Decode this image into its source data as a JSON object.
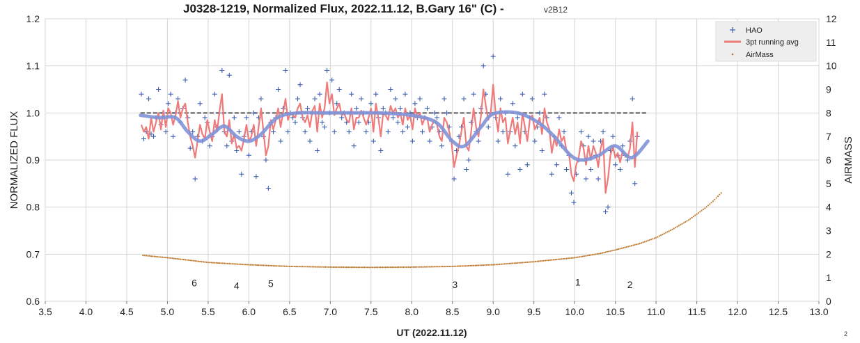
{
  "chart_data": {
    "type": "scatter",
    "title": "J0328-1219, Normalized Flux, 2022.11.12, B.Gary 16\" (C) - ",
    "version_label": "v2B12",
    "xlabel": "UT (2022.11.12)",
    "ylabel": "NORMALIZED FLUX",
    "y2label": "AIRMASS",
    "xlim": [
      3.5,
      13.0
    ],
    "ylim": [
      0.6,
      1.2
    ],
    "y2lim": [
      0,
      12
    ],
    "xticks": [
      "3.5",
      "4.0",
      "4.5",
      "5.0",
      "5.5",
      "6.0",
      "6.5",
      "7.0",
      "7.5",
      "8.0",
      "8.5",
      "9.0",
      "9.5",
      "10.0",
      "10.5",
      "11.0",
      "11.5",
      "12.0",
      "12.5",
      "13.0"
    ],
    "yticks": [
      "0.6",
      "0.7",
      "0.8",
      "0.9",
      "1.0",
      "1.1",
      "1.2"
    ],
    "y2ticks": [
      "0",
      "1",
      "2",
      "3",
      "4",
      "5",
      "6",
      "7",
      "8",
      "9",
      "10",
      "11",
      "12"
    ],
    "grid": true,
    "legend_position": "top-right",
    "legend": [
      "HAO",
      "3pt running avg",
      "AirMass"
    ],
    "corner_note": "2",
    "colors": {
      "hao": "#3b5fb0",
      "running_avg": "#ee7a7a",
      "smooth": "#7f93d8",
      "airmass": "#c07a30",
      "reference": "#777777",
      "grid": "#d4d4d4"
    },
    "reference_line": {
      "x": [
        4.67,
        10.9
      ],
      "y": 1.0
    },
    "annotations": [
      {
        "text": "6",
        "x": 5.33,
        "y": 0.632
      },
      {
        "text": "4",
        "x": 5.85,
        "y": 0.626
      },
      {
        "text": "5",
        "x": 6.27,
        "y": 0.63
      },
      {
        "text": "3",
        "x": 8.53,
        "y": 0.628
      },
      {
        "text": "1",
        "x": 10.04,
        "y": 0.633
      },
      {
        "text": "2",
        "x": 10.68,
        "y": 0.628
      }
    ],
    "hao_x": [
      4.68,
      4.71,
      4.74,
      4.77,
      4.8,
      4.83,
      4.86,
      4.89,
      4.92,
      4.95,
      4.98,
      5.01,
      5.04,
      5.07,
      5.1,
      5.13,
      5.16,
      5.19,
      5.22,
      5.25,
      5.28,
      5.31,
      5.34,
      5.37,
      5.4,
      5.43,
      5.46,
      5.49,
      5.52,
      5.55,
      5.58,
      5.61,
      5.64,
      5.67,
      5.7,
      5.73,
      5.76,
      5.79,
      5.82,
      5.85,
      5.88,
      5.91,
      5.94,
      5.97,
      6.0,
      6.03,
      6.06,
      6.09,
      6.12,
      6.15,
      6.18,
      6.21,
      6.24,
      6.27,
      6.3,
      6.33,
      6.36,
      6.39,
      6.42,
      6.45,
      6.48,
      6.51,
      6.54,
      6.57,
      6.6,
      6.63,
      6.66,
      6.69,
      6.72,
      6.75,
      6.78,
      6.81,
      6.84,
      6.87,
      6.9,
      6.93,
      6.96,
      6.99,
      7.02,
      7.05,
      7.08,
      7.11,
      7.14,
      7.17,
      7.2,
      7.23,
      7.26,
      7.29,
      7.32,
      7.35,
      7.38,
      7.41,
      7.44,
      7.47,
      7.5,
      7.53,
      7.56,
      7.59,
      7.62,
      7.65,
      7.68,
      7.71,
      7.74,
      7.77,
      7.8,
      7.83,
      7.86,
      7.89,
      7.92,
      7.95,
      7.98,
      8.01,
      8.04,
      8.07,
      8.1,
      8.13,
      8.16,
      8.19,
      8.22,
      8.25,
      8.28,
      8.31,
      8.34,
      8.37,
      8.4,
      8.43,
      8.46,
      8.49,
      8.52,
      8.55,
      8.58,
      8.61,
      8.64,
      8.67,
      8.7,
      8.73,
      8.76,
      8.79,
      8.82,
      8.85,
      8.88,
      8.91,
      8.94,
      8.97,
      9.0,
      9.03,
      9.06,
      9.09,
      9.12,
      9.15,
      9.18,
      9.21,
      9.24,
      9.27,
      9.3,
      9.33,
      9.36,
      9.39,
      9.42,
      9.45,
      9.48,
      9.51,
      9.54,
      9.57,
      9.6,
      9.63,
      9.66,
      9.69,
      9.72,
      9.75,
      9.78,
      9.81,
      9.84,
      9.87,
      9.9,
      9.93,
      9.96,
      9.99,
      10.02,
      10.05,
      10.08,
      10.11,
      10.14,
      10.17,
      10.2,
      10.23,
      10.26,
      10.29,
      10.32,
      10.35,
      10.38,
      10.41,
      10.44,
      10.47,
      10.5,
      10.53,
      10.56,
      10.59,
      10.62,
      10.65,
      10.68,
      10.71,
      10.74,
      10.77,
      10.8,
      10.83,
      10.86,
      10.89
    ],
    "hao_y": [
      1.04,
      0.945,
      0.96,
      1.03,
      0.955,
      0.95,
      0.99,
      1.05,
      0.975,
      1.0,
      0.96,
      1.02,
      1.04,
      0.95,
      1.0,
      1.03,
      0.98,
      1.01,
      1.07,
      0.99,
      0.925,
      0.96,
      0.86,
      0.95,
      1.02,
      0.94,
      0.99,
      0.98,
      0.93,
      0.95,
      1.04,
      0.97,
      1.0,
      1.09,
      0.96,
      0.93,
      1.08,
      0.94,
      0.99,
      0.92,
      0.96,
      0.87,
      0.95,
      0.99,
      0.91,
      0.96,
      1.0,
      0.865,
      0.99,
      1.03,
      0.95,
      0.9,
      0.84,
      0.98,
      0.96,
      0.99,
      1.05,
      0.94,
      1.01,
      1.09,
      0.96,
      1.0,
      0.99,
      0.98,
      1.03,
      1.06,
      0.99,
      0.96,
      1.01,
      0.94,
      1.0,
      1.03,
      0.92,
      1.04,
      0.98,
      0.97,
      1.09,
      1.0,
      1.07,
      0.96,
      1.02,
      1.05,
      0.99,
      1.0,
      0.98,
      0.96,
      1.04,
      0.93,
      1.01,
      0.98,
      1.03,
      1.0,
      0.96,
      0.98,
      1.02,
      0.94,
      1.04,
      0.99,
      0.92,
      1.01,
      1.0,
      0.96,
      1.05,
      0.99,
      1.03,
      0.98,
      1.01,
      0.96,
      1.04,
      0.97,
      1.0,
      0.94,
      1.02,
      0.99,
      1.03,
      0.96,
      0.99,
      1.01,
      0.94,
      0.97,
      1.0,
      0.99,
      0.96,
      0.93,
      1.03,
      1.0,
      0.97,
      0.94,
      0.86,
      0.92,
      0.95,
      0.97,
      1.03,
      0.88,
      0.9,
      0.98,
      1.04,
      0.96,
      0.94,
      1.01,
      1.1,
      1.04,
      0.97,
      1.0,
      1.12,
      0.99,
      0.94,
      1.03,
      0.96,
      1.0,
      0.87,
      0.96,
      1.02,
      0.93,
      0.99,
      0.88,
      1.04,
      0.96,
      0.89,
      0.99,
      1.03,
      0.94,
      0.97,
      1.0,
      0.92,
      1.04,
      0.99,
      0.96,
      0.87,
      0.95,
      0.89,
      0.99,
      0.93,
      0.96,
      0.88,
      0.91,
      0.83,
      0.81,
      0.87,
      0.9,
      0.96,
      0.93,
      0.86,
      0.95,
      0.88,
      0.94,
      0.91,
      0.86,
      0.94,
      0.96,
      0.79,
      0.8,
      0.92,
      0.95,
      0.89,
      0.91,
      0.88,
      0.93,
      0.91,
      0.9,
      0.94,
      1.03,
      0.85,
      0.95
    ],
    "running_avg_y": [
      0.975,
      0.96,
      0.97,
      0.945,
      0.99,
      0.96,
      0.98,
      1.0,
      0.965,
      1.005,
      0.97,
      1.01,
      1.0,
      0.975,
      0.995,
      1.025,
      0.99,
      1.01,
      1.02,
      0.98,
      0.95,
      0.93,
      0.905,
      0.94,
      0.975,
      0.955,
      0.945,
      0.985,
      0.96,
      0.94,
      0.985,
      0.96,
      1.005,
      1.04,
      0.96,
      0.95,
      0.985,
      0.935,
      0.955,
      0.925,
      0.93,
      0.92,
      0.945,
      0.975,
      0.94,
      0.95,
      0.975,
      0.93,
      0.97,
      1.01,
      0.96,
      0.91,
      0.93,
      0.985,
      0.965,
      0.985,
      1.01,
      0.97,
      1.0,
      1.03,
      0.985,
      1.0,
      0.995,
      0.99,
      1.01,
      1.02,
      0.99,
      0.98,
      0.995,
      0.97,
      1.005,
      1.015,
      0.96,
      1.02,
      0.99,
      1.01,
      1.065,
      1.02,
      1.04,
      0.995,
      1.01,
      1.02,
      0.995,
      1.0,
      0.985,
      0.98,
      1.01,
      0.965,
      0.99,
      0.99,
      1.005,
      0.99,
      0.975,
      0.99,
      1.01,
      0.96,
      1.02,
      0.99,
      0.95,
      1.0,
      0.995,
      0.985,
      1.015,
      1.0,
      1.01,
      0.99,
      1.0,
      0.975,
      1.01,
      0.985,
      0.995,
      0.965,
      1.01,
      0.99,
      1.0,
      0.975,
      0.99,
      0.99,
      0.96,
      0.975,
      0.985,
      0.975,
      0.95,
      0.94,
      0.99,
      0.98,
      0.96,
      0.935,
      0.885,
      0.91,
      0.93,
      0.96,
      0.99,
      0.93,
      0.92,
      0.96,
      1.01,
      0.97,
      0.95,
      0.995,
      1.05,
      1.015,
      0.985,
      1.0,
      1.06,
      1.0,
      0.96,
      1.01,
      0.98,
      0.99,
      0.935,
      0.965,
      0.99,
      0.955,
      0.98,
      0.935,
      1.0,
      0.97,
      0.94,
      0.985,
      0.995,
      0.965,
      0.975,
      0.99,
      0.955,
      1.01,
      0.98,
      0.965,
      0.915,
      0.945,
      0.93,
      0.965,
      0.94,
      0.95,
      0.92,
      0.915,
      0.87,
      0.855,
      0.89,
      0.905,
      0.94,
      0.925,
      0.89,
      0.93,
      0.9,
      0.93,
      0.915,
      0.885,
      0.925,
      0.945,
      0.83,
      0.86,
      0.91,
      0.93,
      0.905,
      0.915,
      0.895,
      0.92,
      0.91,
      0.905,
      0.925,
      0.98,
      0.885,
      0.96
    ],
    "smooth_x": [
      4.67,
      4.9,
      5.1,
      5.25,
      5.4,
      5.55,
      5.7,
      5.85,
      6.0,
      6.15,
      6.35,
      6.6,
      6.9,
      7.2,
      7.6,
      8.0,
      8.3,
      8.5,
      8.65,
      8.85,
      9.0,
      9.3,
      9.55,
      9.75,
      9.95,
      10.1,
      10.3,
      10.5,
      10.7,
      10.9
    ],
    "smooth_y": [
      0.995,
      0.99,
      0.99,
      0.96,
      0.94,
      0.955,
      0.972,
      0.95,
      0.94,
      0.955,
      0.99,
      1.0,
      1.0,
      1.0,
      1.0,
      0.995,
      0.98,
      0.94,
      0.93,
      0.97,
      0.998,
      1.0,
      0.98,
      0.95,
      0.91,
      0.9,
      0.91,
      0.93,
      0.905,
      0.94
    ],
    "airmass_x": [
      4.7,
      5.0,
      5.5,
      6.0,
      6.5,
      7.0,
      7.5,
      8.0,
      8.5,
      9.0,
      9.5,
      10.0,
      10.3,
      10.5,
      10.8,
      11.0,
      11.2,
      11.4,
      11.6,
      11.7,
      11.8
    ],
    "airmass_y": [
      1.95,
      1.85,
      1.65,
      1.55,
      1.48,
      1.45,
      1.44,
      1.45,
      1.48,
      1.55,
      1.68,
      1.85,
      2.02,
      2.18,
      2.45,
      2.7,
      3.05,
      3.45,
      3.95,
      4.25,
      4.6
    ]
  }
}
